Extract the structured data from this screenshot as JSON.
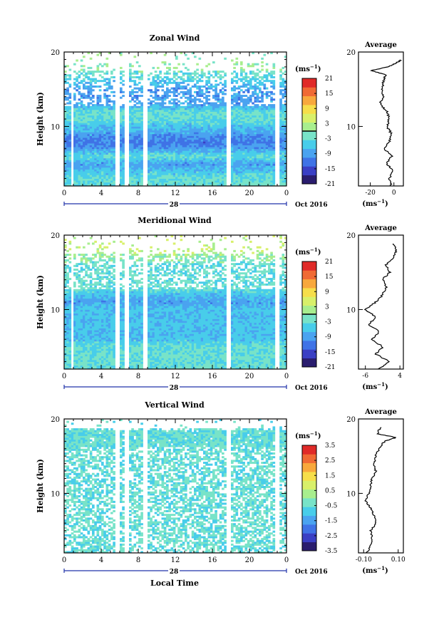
{
  "figure": {
    "xlabel": "Local Time",
    "date_label": "Oct 2016",
    "day_label": "28",
    "ylabel": "Height (km)",
    "unit_label": "(ms",
    "unit_sup": "−1",
    "average_title": "Average",
    "x_ticks": [
      "0",
      "4",
      "8",
      "12",
      "16",
      "20",
      "0"
    ],
    "y_ticks": [
      "20",
      "10"
    ]
  },
  "panels": [
    {
      "id": "zonal",
      "title": "Zonal Wind",
      "colorbar_ticks": [
        "21",
        "15",
        "9",
        "3",
        "-3",
        "-9",
        "-15",
        "-21"
      ],
      "average_xticks": [
        "-20",
        "0"
      ],
      "average_xlabel": "(ms",
      "average_xlabel_sup": "−1"
    },
    {
      "id": "meridional",
      "title": "Meridional Wind",
      "colorbar_ticks": [
        "21",
        "15",
        "9",
        "3",
        "-3",
        "-9",
        "-15",
        "-21"
      ],
      "average_xticks": [
        "-6",
        "4"
      ],
      "average_xlabel": "(ms",
      "average_xlabel_sup": "−1"
    },
    {
      "id": "vertical",
      "title": "Vertical Wind",
      "colorbar_ticks": [
        "3.5",
        "2.5",
        "1.5",
        "0.5",
        "-0.5",
        "-1.5",
        "-2.5",
        "-3.5"
      ],
      "average_xticks": [
        "-0.10",
        "0.10"
      ],
      "average_xlabel": "(ms",
      "average_xlabel_sup": "−1"
    }
  ],
  "colors": {
    "colormap": [
      "#2a1d6e",
      "#3a3fc4",
      "#3f73e6",
      "#4aa3f0",
      "#48cdea",
      "#78e3c8",
      "#a8ee8e",
      "#d8f06a",
      "#f6de4a",
      "#f8a83c",
      "#f06a34",
      "#e02a28"
    ],
    "axis": "#000000",
    "time_bar": "#2233aa"
  },
  "chart_data": [
    {
      "type": "heatmap",
      "title": "Zonal Wind",
      "x_range_hours": [
        0,
        24
      ],
      "y_range_km": [
        2,
        20
      ],
      "colorbar_range": [
        -21,
        21
      ],
      "colorbar_ticks": [
        21,
        15,
        9,
        3,
        -3,
        -9,
        -15,
        -21
      ],
      "data_gaps_hours": [
        [
          0.7,
          0.9
        ],
        [
          5.6,
          5.9
        ],
        [
          6.5,
          6.9
        ],
        [
          8.5,
          8.9
        ],
        [
          17.6,
          18.0
        ],
        [
          22.8,
          23.2
        ]
      ],
      "height_km": [
        2,
        3,
        4,
        5,
        6,
        7,
        8,
        9,
        10,
        11,
        12,
        13,
        14,
        15,
        16,
        17,
        18
      ],
      "profile_ms": [
        -3,
        -3,
        -6,
        -9,
        -3,
        -9,
        -12,
        -9,
        -6,
        -3,
        -3,
        -9,
        -9,
        -9,
        -6,
        -3,
        0
      ]
    },
    {
      "type": "heatmap",
      "title": "Meridional Wind",
      "x_range_hours": [
        0,
        24
      ],
      "y_range_km": [
        2,
        20
      ],
      "colorbar_range": [
        -21,
        21
      ],
      "colorbar_ticks": [
        21,
        15,
        9,
        3,
        -3,
        -9,
        -15,
        -21
      ],
      "data_gaps_hours": [
        [
          0.7,
          0.9
        ],
        [
          5.6,
          5.9
        ],
        [
          6.5,
          6.9
        ],
        [
          8.5,
          8.9
        ],
        [
          17.6,
          18.0
        ],
        [
          22.8,
          23.2
        ]
      ],
      "height_km": [
        2,
        3,
        4,
        5,
        6,
        7,
        8,
        9,
        10,
        11,
        12,
        13,
        14,
        15,
        16,
        17,
        18
      ],
      "profile_ms": [
        -3,
        -3,
        -3,
        -3,
        -6,
        -6,
        -6,
        -6,
        -6,
        -9,
        -6,
        -3,
        -3,
        -3,
        -3,
        0,
        3
      ]
    },
    {
      "type": "heatmap",
      "title": "Vertical Wind",
      "x_range_hours": [
        0,
        24
      ],
      "y_range_km": [
        2,
        20
      ],
      "colorbar_range": [
        -3.5,
        3.5
      ],
      "colorbar_ticks": [
        3.5,
        2.5,
        1.5,
        0.5,
        -0.5,
        -1.5,
        -2.5,
        -3.5
      ],
      "data_gaps_hours": [
        [
          5.6,
          5.9
        ],
        [
          6.5,
          6.9
        ],
        [
          8.5,
          8.9
        ],
        [
          17.6,
          18.0
        ],
        [
          22.8,
          23.2
        ]
      ],
      "height_km": [
        2,
        3,
        4,
        5,
        6,
        7,
        8,
        9,
        10,
        11,
        12,
        13,
        14,
        15,
        16,
        17,
        18
      ],
      "profile_ms": [
        -0.5,
        -0.5,
        -0.5,
        -0.5,
        -0.5,
        -0.5,
        -0.5,
        -0.5,
        -0.5,
        -0.5,
        -0.5,
        -0.5,
        -0.5,
        -0.5,
        -0.5,
        -0.5,
        -0.5
      ]
    },
    {
      "type": "line",
      "title": "Average",
      "series": [
        {
          "name": "Zonal Wind",
          "height_km": [
            2,
            3,
            4,
            5,
            6,
            7,
            8,
            9,
            10,
            11,
            12,
            13,
            14,
            15,
            16,
            17,
            17.5,
            18,
            18.5,
            19
          ],
          "value_ms": [
            -2,
            -4,
            -1,
            -6,
            -2,
            -8,
            -4,
            -2,
            -6,
            -4,
            -6,
            -12,
            -9,
            -10,
            -9,
            -7,
            -20,
            -5,
            2,
            6
          ]
        },
        {
          "name": "Meridional Wind",
          "height_km": [
            2,
            3,
            4,
            5,
            6,
            7,
            8,
            9,
            10,
            11,
            12,
            13,
            14,
            15,
            16,
            17,
            18,
            19
          ],
          "value_ms": [
            -2,
            1,
            -3,
            -1,
            -4,
            -2,
            -5,
            -3,
            -6,
            -3,
            -1,
            0,
            -1,
            1,
            0,
            2,
            3,
            2
          ]
        },
        {
          "name": "Vertical Wind",
          "height_km": [
            2,
            3,
            4,
            5,
            6,
            7,
            8,
            9,
            10,
            11,
            12,
            13,
            14,
            15,
            16,
            17,
            17.5,
            18,
            19
          ],
          "value_ms": [
            -0.08,
            -0.06,
            -0.05,
            -0.06,
            -0.03,
            -0.04,
            -0.06,
            -0.09,
            -0.07,
            -0.06,
            -0.05,
            -0.03,
            -0.04,
            -0.03,
            -0.01,
            0.02,
            0.09,
            -0.02,
            0.0
          ]
        }
      ]
    }
  ]
}
